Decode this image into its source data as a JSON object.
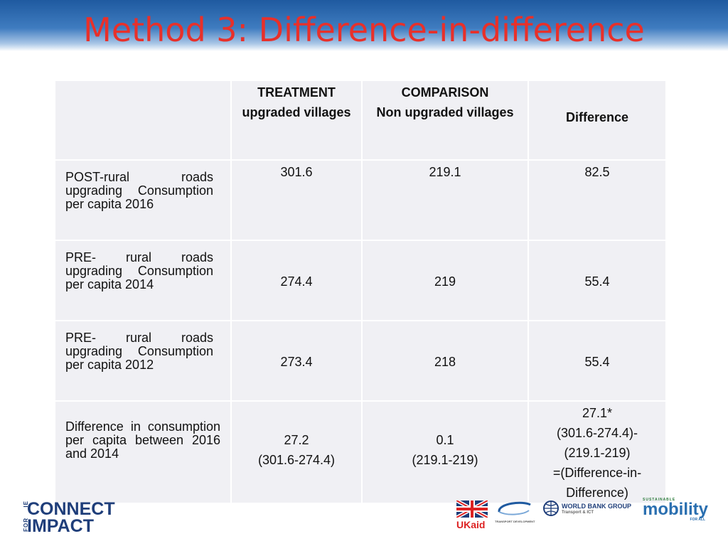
{
  "title": "Method 3: Difference-in-difference",
  "table": {
    "headers": [
      {
        "line1": "",
        "line2": ""
      },
      {
        "line1": "TREATMENT",
        "line2": "upgraded villages"
      },
      {
        "line1": "COMPARISON",
        "line2": "Non upgraded villages"
      },
      {
        "line1": "",
        "line2": "Difference"
      }
    ],
    "rows": [
      {
        "label": "POST-rural roads upgrading Consumption per capita 2016",
        "treatment": [
          "301.6"
        ],
        "comparison": [
          "219.1"
        ],
        "difference": [
          "82.5"
        ]
      },
      {
        "label": "PRE- rural roads upgrading Consumption per capita 2014",
        "treatment": [
          "274.4"
        ],
        "comparison": [
          "219"
        ],
        "difference": [
          "55.4"
        ]
      },
      {
        "label": "PRE- rural roads upgrading Consumption per capita 2012",
        "treatment": [
          "273.4"
        ],
        "comparison": [
          "218"
        ],
        "difference": [
          "55.4"
        ]
      },
      {
        "label": "Difference in consumption per capita between 2016 and 2014",
        "treatment": [
          "27.2",
          "(301.6-274.4)"
        ],
        "comparison": [
          "0.1",
          "(219.1-219)"
        ],
        "difference": [
          "27.1*",
          "(301.6-274.4)-",
          "(219.1-219)",
          "=(Difference-in-",
          "Difference)"
        ]
      }
    ]
  },
  "logos": {
    "connect_for_impact": {
      "ie": "IE",
      "for": "FOR",
      "connect": "CONNECT",
      "impact": "IMPACT"
    },
    "ukaid": "UKaid",
    "transport": "TRANSPORT DEVELOPMENT",
    "worldbank": "WORLD BANK GROUP",
    "worldbank_sub": "Transport & ICT",
    "mobility_top": "SUSTAINABLE",
    "mobility": "mobility",
    "mobility_sub": "FOR ALL"
  }
}
